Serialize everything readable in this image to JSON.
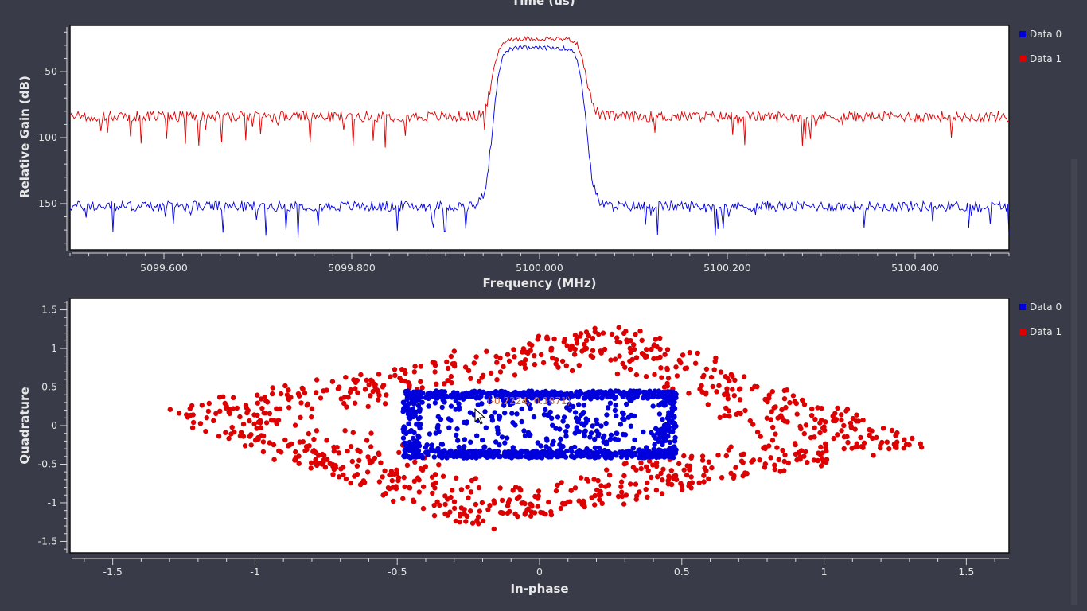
{
  "top_label_cutoff": "Time (us)",
  "colors": {
    "series0": "#0000dd",
    "series1": "#dd0000"
  },
  "chart_data": [
    {
      "type": "line",
      "xlabel": "Frequency (MHz)",
      "ylabel": "Relative Gain (dB)",
      "xlim": [
        5099.5,
        5100.5
      ],
      "ylim": [
        -185,
        -15
      ],
      "x_ticks": [
        {
          "v": 5099.6,
          "label": "5099.600"
        },
        {
          "v": 5099.8,
          "label": "5099.800"
        },
        {
          "v": 5100.0,
          "label": "5100.000"
        },
        {
          "v": 5100.2,
          "label": "5100.200"
        },
        {
          "v": 5100.4,
          "label": "5100.400"
        }
      ],
      "y_ticks": [
        {
          "v": -50,
          "label": "-50"
        },
        {
          "v": -100,
          "label": "-100"
        },
        {
          "v": -150,
          "label": "-150"
        }
      ],
      "passband": [
        5099.95,
        5100.05
      ],
      "series": [
        {
          "name": "Data 0",
          "color": "#0000dd",
          "noise_floor": -152,
          "passband_level": -32,
          "noise_spread": 8
        },
        {
          "name": "Data 1",
          "color": "#dd0000",
          "noise_floor": -84,
          "passband_level": -25,
          "noise_spread": 8
        }
      ],
      "legend": "right"
    },
    {
      "type": "scatter",
      "xlabel": "In-phase",
      "ylabel": "Quadrature",
      "xlim": [
        -1.65,
        1.65
      ],
      "ylim": [
        -1.65,
        1.65
      ],
      "x_ticks": [
        {
          "v": -1.5,
          "label": "-1.5"
        },
        {
          "v": -1,
          "label": "-1"
        },
        {
          "v": -0.5,
          "label": "-0.5"
        },
        {
          "v": 0,
          "label": "0"
        },
        {
          "v": 0.5,
          "label": "0.5"
        },
        {
          "v": 1,
          "label": "1"
        },
        {
          "v": 1.5,
          "label": "1.5"
        }
      ],
      "y_ticks": [
        {
          "v": 1.5,
          "label": "1.5"
        },
        {
          "v": 1,
          "label": "1"
        },
        {
          "v": 0.5,
          "label": "0.5"
        },
        {
          "v": 0,
          "label": "0"
        },
        {
          "v": -0.5,
          "label": "-0.5"
        },
        {
          "v": -1,
          "label": "-1"
        },
        {
          "v": -1.5,
          "label": "-1.5"
        }
      ],
      "series": [
        {
          "name": "Data 0",
          "color": "#0000dd",
          "shape": "box",
          "x_range": [
            -0.48,
            0.48
          ],
          "y_range": [
            -0.42,
            0.45
          ]
        },
        {
          "name": "Data 1",
          "color": "#dd0000",
          "shape": "diamond",
          "vertices": [
            [
              -1.33,
              0.18
            ],
            [
              0.27,
              1.33
            ],
            [
              1.35,
              -0.25
            ],
            [
              -0.25,
              -1.35
            ]
          ]
        }
      ],
      "cursor_readout": "(-0.2224, 0.1871)",
      "legend": "right"
    }
  ]
}
